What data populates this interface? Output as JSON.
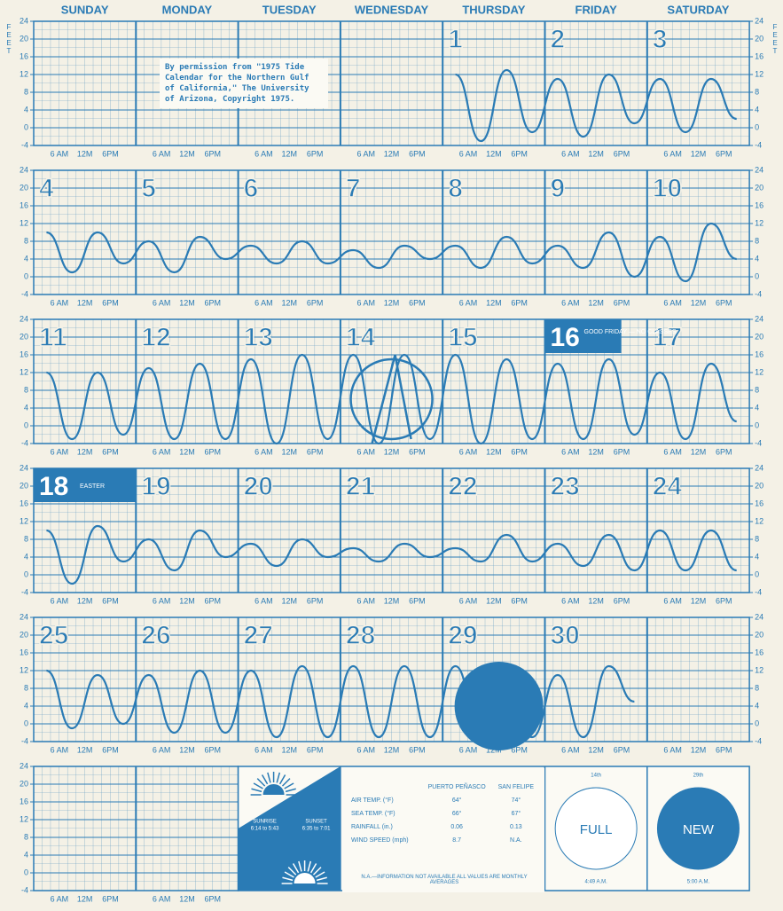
{
  "header": {
    "days": [
      "SUNDAY",
      "MONDAY",
      "TUESDAY",
      "WEDNESDAY",
      "THURSDAY",
      "FRIDAY",
      "SATURDAY"
    ]
  },
  "axis_label": "FEET",
  "y_ticks": [
    -4,
    0,
    4,
    8,
    12,
    16,
    20,
    24
  ],
  "time_labels": [
    "6 AM",
    "12M",
    "6PM"
  ],
  "permission_note": "By permission from \"1975 Tide Calendar for the Northern Gulf of California,\" The University of Arizona, Copyright 1975.",
  "weeks": [
    {
      "dates": [
        null,
        null,
        null,
        null,
        1,
        2,
        3
      ],
      "tide": [
        null,
        null,
        null,
        null,
        null,
        null,
        null,
        null,
        null,
        null,
        null,
        null,
        null,
        null,
        null,
        null,
        12,
        -3,
        13,
        -1,
        11,
        -2,
        12,
        1,
        11,
        -1,
        11,
        2
      ]
    },
    {
      "dates": [
        4,
        5,
        6,
        7,
        8,
        9,
        10
      ],
      "tide": [
        10,
        1,
        10,
        3,
        8,
        1,
        9,
        4,
        7,
        3,
        8,
        3,
        6,
        2,
        7,
        4,
        7,
        2,
        9,
        3,
        7,
        2,
        10,
        0,
        9,
        -1,
        12,
        4
      ]
    },
    {
      "dates": [
        11,
        12,
        13,
        14,
        15,
        16,
        17
      ],
      "tide": [
        12,
        -3,
        12,
        -2,
        13,
        -3,
        14,
        -3,
        15,
        -4,
        16,
        -3,
        16,
        -4,
        16,
        -3,
        16,
        -4,
        15,
        -3,
        14,
        -3,
        15,
        -2,
        12,
        -3,
        14,
        1
      ]
    },
    {
      "dates": [
        18,
        19,
        20,
        21,
        22,
        23,
        24
      ],
      "tide": [
        10,
        -2,
        11,
        3,
        8,
        1,
        10,
        4,
        7,
        2,
        8,
        4,
        6,
        3,
        7,
        4,
        6,
        3,
        9,
        3,
        7,
        2,
        9,
        1,
        10,
        1,
        10,
        1
      ]
    },
    {
      "dates": [
        25,
        26,
        27,
        28,
        29,
        30,
        null
      ],
      "tide": [
        12,
        -1,
        11,
        0,
        11,
        -2,
        12,
        -2,
        12,
        -3,
        13,
        -3,
        13,
        -3,
        13,
        -3,
        13,
        -3,
        13,
        -3,
        11,
        -3,
        13,
        5,
        null,
        null,
        null,
        null
      ]
    }
  ],
  "annotations": {
    "good_friday": "GOOD FRIDAY — NO CLASSES",
    "easter": "EASTER"
  },
  "sun": {
    "sunrise_label": "SUNRISE",
    "sunrise_times": "6:14 to 5:43",
    "sunset_label": "SUNSET",
    "sunset_times": "6:35 to 7:01"
  },
  "climate": {
    "columns": [
      "PUERTO PEÑASCO",
      "SAN FELIPE"
    ],
    "rows": [
      [
        "AIR TEMP. (°F)",
        "64°",
        "74°"
      ],
      [
        "SEA TEMP. (°F)",
        "66°",
        "67°"
      ],
      [
        "RAINFALL (in.)",
        "0.06",
        "0.13"
      ],
      [
        "WIND SPEED (mph)",
        "8.7",
        "N.A."
      ]
    ],
    "note": "N.A.—INFORMATION NOT AVAILABLE ALL VALUES ARE MONTHLY AVERAGES"
  },
  "moons": [
    {
      "date": "14th",
      "phase": "FULL",
      "time": "4:49 A.M."
    },
    {
      "date": "29th",
      "phase": "NEW",
      "time": "5:00 A.M."
    }
  ]
}
